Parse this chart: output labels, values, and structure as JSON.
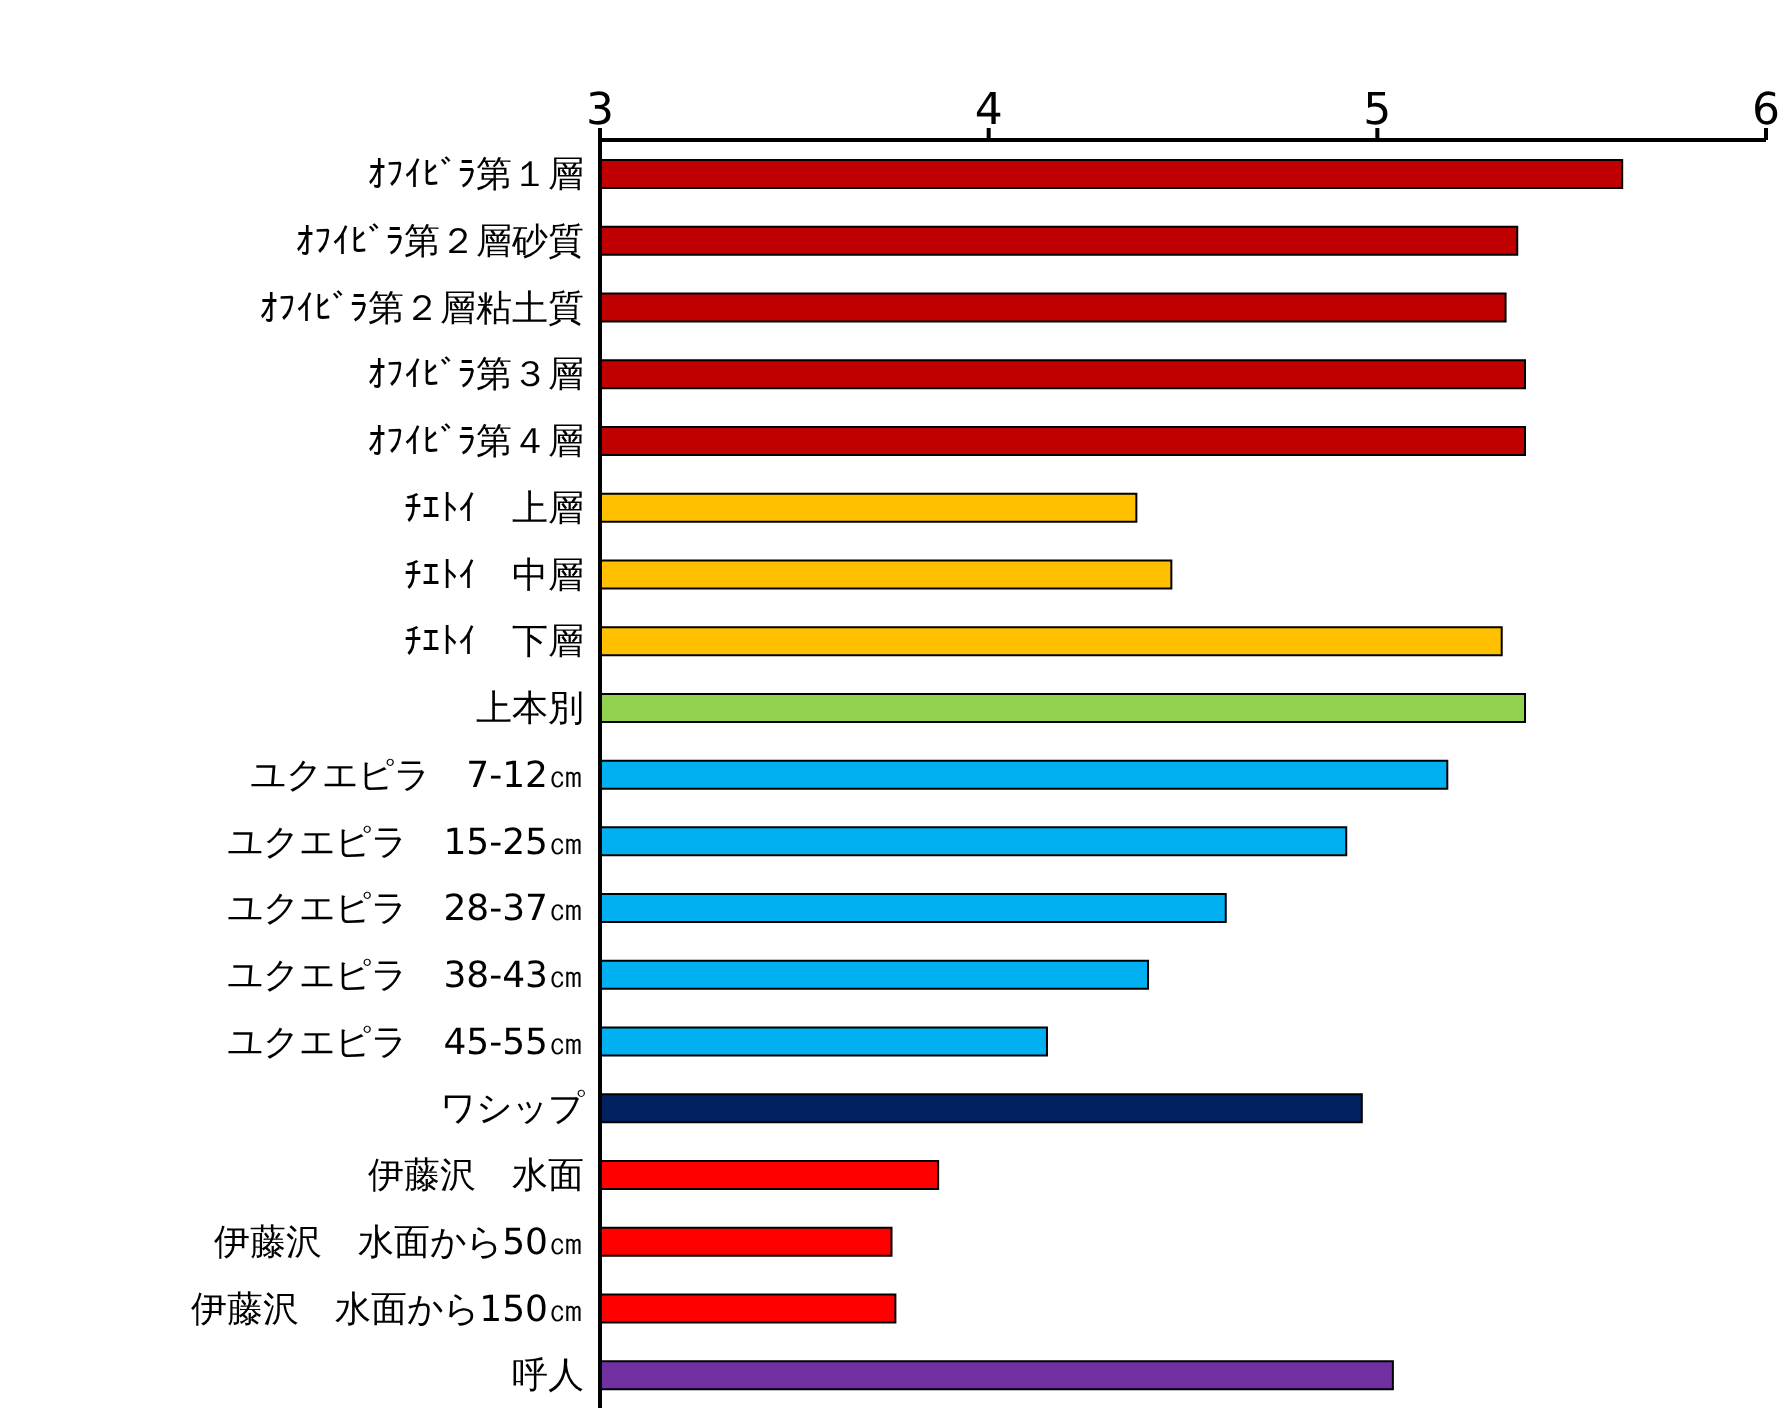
{
  "chart_data": {
    "type": "bar",
    "orientation": "horizontal",
    "categories": [
      "ｵﾌｲﾋﾞﾗ第１層",
      "ｵﾌｲﾋﾞﾗ第２層砂質",
      "ｵﾌｲﾋﾞﾗ第２層粘土質",
      "ｵﾌｲﾋﾞﾗ第３層",
      "ｵﾌｲﾋﾞﾗ第４層",
      "ﾁｴﾄｲ　上層",
      "ﾁｴﾄｲ　中層",
      "ﾁｴﾄｲ　下層",
      "上本別",
      "ユクエピラ　7-12㎝",
      "ユクエピラ　15-25㎝",
      "ユクエピラ　28-37㎝",
      "ユクエピラ　38-43㎝",
      "ユクエピラ　45-55㎝",
      "ワシップ",
      "伊藤沢　水面",
      "伊藤沢　水面から50㎝",
      "伊藤沢　水面から150㎝",
      "呼人"
    ],
    "values": [
      5.63,
      5.36,
      5.33,
      5.38,
      5.38,
      4.38,
      4.47,
      5.32,
      5.38,
      5.18,
      4.92,
      4.61,
      4.41,
      4.15,
      4.96,
      3.87,
      3.75,
      3.76,
      5.04
    ],
    "colors": [
      "#c00000",
      "#c00000",
      "#c00000",
      "#c00000",
      "#c00000",
      "#ffc000",
      "#ffc000",
      "#ffc000",
      "#92d050",
      "#00b0f0",
      "#00b0f0",
      "#00b0f0",
      "#00b0f0",
      "#00b0f0",
      "#002060",
      "#ff0000",
      "#ff0000",
      "#ff0000",
      "#7030a0"
    ],
    "xlim": [
      3,
      6
    ],
    "xticks": [
      3,
      4,
      5,
      6
    ],
    "grid": false,
    "legend": false
  }
}
